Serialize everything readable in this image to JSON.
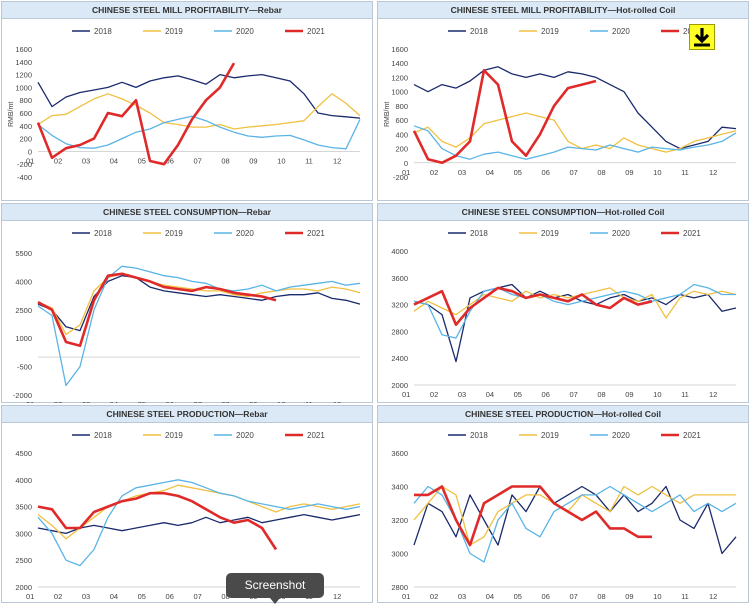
{
  "colors": {
    "2018": "#1a2a6c",
    "2019": "#f0c040",
    "2020": "#5ab4e6",
    "2021": "#e02a2a"
  },
  "years": [
    "2018",
    "2019",
    "2020",
    "2021"
  ],
  "tooltip": "Screenshot",
  "download_icon": "download-arrow-icon",
  "chart_data": [
    {
      "type": "line",
      "title": "CHINESE STEEL MILL PROFITABILITY—Rebar",
      "ylabel": "RMB/mt",
      "ylim": [
        -400,
        1600
      ],
      "yticks": [
        -400,
        -200,
        0,
        200,
        400,
        600,
        800,
        1000,
        1200,
        1400,
        1600
      ],
      "xticks": [
        "01",
        "02",
        "03",
        "04",
        "05",
        "06",
        "07",
        "08",
        "09",
        "10",
        "11",
        "12"
      ],
      "series": [
        {
          "name": "2018",
          "values": [
            1080,
            700,
            850,
            920,
            960,
            1000,
            1080,
            1000,
            1100,
            1150,
            1180,
            1120,
            1050,
            1200,
            1150,
            1180,
            1200,
            1150,
            1100,
            900,
            600,
            560,
            540,
            520
          ]
        },
        {
          "name": "2019",
          "values": [
            420,
            560,
            580,
            700,
            820,
            900,
            820,
            720,
            600,
            450,
            420,
            380,
            380,
            420,
            350,
            380,
            400,
            420,
            450,
            480,
            700,
            900,
            750,
            560
          ]
        },
        {
          "name": "2020",
          "values": [
            420,
            250,
            120,
            60,
            50,
            100,
            200,
            300,
            350,
            450,
            500,
            550,
            480,
            380,
            300,
            240,
            220,
            240,
            250,
            180,
            100,
            60,
            40,
            500
          ]
        },
        {
          "name": "2021",
          "values": [
            450,
            -100,
            50,
            100,
            200,
            600,
            550,
            800,
            -150,
            -200,
            100,
            500,
            800,
            1000,
            1380,
            null,
            null,
            null,
            null,
            null,
            null,
            null,
            null,
            null
          ]
        }
      ]
    },
    {
      "type": "line",
      "title": "CHINESE STEEL MILL PROFITABILITY—Hot-rolled Coil",
      "ylabel": "RMB/mt",
      "ylim": [
        -200,
        1600
      ],
      "yticks": [
        -200,
        0,
        200,
        400,
        600,
        800,
        1000,
        1200,
        1400,
        1600
      ],
      "xticks": [
        "01",
        "02",
        "03",
        "04",
        "05",
        "06",
        "07",
        "08",
        "09",
        "10",
        "11",
        "12"
      ],
      "series": [
        {
          "name": "2018",
          "values": [
            1100,
            1000,
            1100,
            1050,
            1150,
            1300,
            1350,
            1250,
            1200,
            1250,
            1200,
            1280,
            1250,
            1200,
            1100,
            1000,
            700,
            500,
            300,
            200,
            250,
            300,
            500,
            480
          ]
        },
        {
          "name": "2019",
          "values": [
            420,
            500,
            300,
            220,
            350,
            550,
            600,
            650,
            700,
            650,
            600,
            300,
            200,
            250,
            200,
            350,
            250,
            200,
            150,
            200,
            300,
            350,
            400,
            450
          ]
        },
        {
          "name": "2020",
          "values": [
            520,
            450,
            200,
            100,
            50,
            120,
            150,
            100,
            50,
            100,
            150,
            220,
            200,
            180,
            250,
            200,
            150,
            220,
            200,
            180,
            220,
            250,
            300,
            420
          ]
        },
        {
          "name": "2021",
          "values": [
            450,
            50,
            0,
            100,
            300,
            1300,
            1100,
            300,
            100,
            400,
            800,
            1050,
            1100,
            1150,
            null,
            null,
            null,
            null,
            null,
            null,
            null,
            null,
            null,
            null
          ]
        }
      ]
    },
    {
      "type": "line",
      "title": "CHINESE STEEL CONSUMPTION—Rebar",
      "ylim": [
        -2000,
        5500
      ],
      "yticks": [
        -2000,
        -500,
        1000,
        2500,
        4000,
        5500
      ],
      "xticks": [
        "01",
        "02",
        "03",
        "04",
        "05",
        "06",
        "07",
        "08",
        "09",
        "10",
        "11",
        "12"
      ],
      "series": [
        {
          "name": "2018",
          "values": [
            2800,
            2500,
            1600,
            1400,
            3200,
            4000,
            4300,
            4200,
            3700,
            3500,
            3400,
            3300,
            3200,
            3300,
            3200,
            3100,
            3000,
            3200,
            3300,
            3300,
            3400,
            3100,
            3000,
            2800
          ]
        },
        {
          "name": "2019",
          "values": [
            2900,
            2600,
            1200,
            1700,
            3500,
            4200,
            4400,
            4200,
            4000,
            3800,
            3700,
            3600,
            3500,
            3500,
            3300,
            3200,
            3400,
            3500,
            3600,
            3600,
            3500,
            3700,
            3600,
            3400
          ]
        },
        {
          "name": "2020",
          "values": [
            2700,
            2200,
            -1500,
            -500,
            2500,
            4200,
            4800,
            4700,
            4500,
            4300,
            4200,
            4000,
            3900,
            3600,
            3500,
            3600,
            3800,
            3500,
            3700,
            3800,
            3900,
            4000,
            3800,
            3900
          ]
        },
        {
          "name": "2021",
          "values": [
            2900,
            2500,
            800,
            600,
            3000,
            4300,
            4400,
            4200,
            4000,
            3700,
            3600,
            3500,
            3700,
            3600,
            3400,
            3300,
            3200,
            3000,
            null,
            null,
            null,
            null,
            null,
            null
          ]
        }
      ]
    },
    {
      "type": "line",
      "title": "CHINESE STEEL CONSUMPTION—Hot-rolled Coil",
      "ylim": [
        2000,
        4000
      ],
      "yticks": [
        2000,
        2400,
        2800,
        3200,
        3600,
        4000
      ],
      "xticks": [
        "01",
        "02",
        "03",
        "04",
        "05",
        "06",
        "07",
        "08",
        "09",
        "10",
        "11",
        "12"
      ],
      "series": [
        {
          "name": "2018",
          "values": [
            3250,
            3200,
            3050,
            2350,
            3300,
            3400,
            3450,
            3500,
            3300,
            3400,
            3300,
            3350,
            3250,
            3200,
            3300,
            3350,
            3250,
            3300,
            3200,
            3350,
            3300,
            3350,
            3100,
            3150
          ]
        },
        {
          "name": "2019",
          "values": [
            3100,
            3250,
            3150,
            3050,
            3200,
            3350,
            3300,
            3250,
            3400,
            3300,
            3350,
            3300,
            3350,
            3400,
            3450,
            3300,
            3250,
            3350,
            3000,
            3300,
            3400,
            3350,
            3400,
            3350
          ]
        },
        {
          "name": "2020",
          "values": [
            3250,
            3200,
            2750,
            2700,
            3100,
            3400,
            3450,
            3350,
            3300,
            3350,
            3250,
            3200,
            3250,
            3300,
            3350,
            3400,
            3350,
            3250,
            3300,
            3350,
            3500,
            3450,
            3350,
            3350
          ]
        },
        {
          "name": "2021",
          "values": [
            3200,
            3300,
            3400,
            2900,
            3150,
            3300,
            3450,
            3400,
            3300,
            3350,
            3300,
            3250,
            3350,
            3200,
            3150,
            3300,
            3200,
            3250,
            null,
            null,
            null,
            null,
            null,
            null
          ]
        }
      ]
    },
    {
      "type": "line",
      "title": "CHINESE STEEL PRODUCTION—Rebar",
      "ylim": [
        2000,
        4500
      ],
      "yticks": [
        2000,
        2500,
        3000,
        3500,
        4000,
        4500
      ],
      "xticks": [
        "01",
        "02",
        "03",
        "04",
        "05",
        "06",
        "07",
        "08",
        "09",
        "10",
        "11",
        "12"
      ],
      "series": [
        {
          "name": "2018",
          "values": [
            3100,
            3050,
            3000,
            3100,
            3150,
            3100,
            3050,
            3100,
            3150,
            3200,
            3150,
            3200,
            3300,
            3200,
            3250,
            3300,
            3200,
            3250,
            3300,
            3350,
            3300,
            3250,
            3300,
            3350
          ]
        },
        {
          "name": "2019",
          "values": [
            3350,
            3150,
            2900,
            3100,
            3300,
            3500,
            3600,
            3700,
            3750,
            3800,
            3900,
            3850,
            3800,
            3750,
            3700,
            3600,
            3500,
            3400,
            3500,
            3550,
            3500,
            3450,
            3500,
            3550
          ]
        },
        {
          "name": "2020",
          "values": [
            3300,
            3000,
            2500,
            2400,
            2700,
            3300,
            3700,
            3850,
            3900,
            3950,
            4000,
            3950,
            3850,
            3750,
            3700,
            3600,
            3550,
            3500,
            3450,
            3500,
            3550,
            3500,
            3450,
            3500
          ]
        },
        {
          "name": "2021",
          "values": [
            3500,
            3450,
            3100,
            3100,
            3400,
            3500,
            3600,
            3650,
            3750,
            3750,
            3700,
            3600,
            3450,
            3300,
            3200,
            3250,
            3100,
            2700,
            null,
            null,
            null,
            null,
            null,
            null
          ]
        }
      ]
    },
    {
      "type": "line",
      "title": "CHINESE STEEL PRODUCTION—Hot-rolled Coil",
      "ylim": [
        2800,
        3600
      ],
      "yticks": [
        2800,
        3000,
        3200,
        3400,
        3600
      ],
      "xticks": [
        "01",
        "02",
        "03",
        "04",
        "05",
        "06",
        "07",
        "08",
        "09",
        "10",
        "11",
        "12"
      ],
      "series": [
        {
          "name": "2018",
          "values": [
            3050,
            3300,
            3250,
            3100,
            3350,
            3200,
            3050,
            3350,
            3250,
            3400,
            3300,
            3350,
            3400,
            3350,
            3250,
            3350,
            3250,
            3300,
            3400,
            3200,
            3150,
            3300,
            3000,
            3100
          ]
        },
        {
          "name": "2019",
          "values": [
            3200,
            3300,
            3400,
            3350,
            3050,
            3100,
            3250,
            3300,
            3350,
            3350,
            3300,
            3250,
            3350,
            3300,
            3250,
            3400,
            3350,
            3400,
            3350,
            3300,
            3350,
            3350,
            3350,
            3350
          ]
        },
        {
          "name": "2020",
          "values": [
            3300,
            3400,
            3350,
            3200,
            3000,
            2950,
            3200,
            3300,
            3150,
            3100,
            3250,
            3300,
            3350,
            3350,
            3400,
            3350,
            3300,
            3250,
            3300,
            3350,
            3250,
            3300,
            3250,
            3300
          ]
        },
        {
          "name": "2021",
          "values": [
            3350,
            3350,
            3400,
            3200,
            3050,
            3300,
            3350,
            3400,
            3400,
            3400,
            3300,
            3250,
            3200,
            3250,
            3150,
            3150,
            3100,
            3100,
            null,
            null,
            null,
            null,
            null,
            null
          ]
        }
      ]
    }
  ]
}
